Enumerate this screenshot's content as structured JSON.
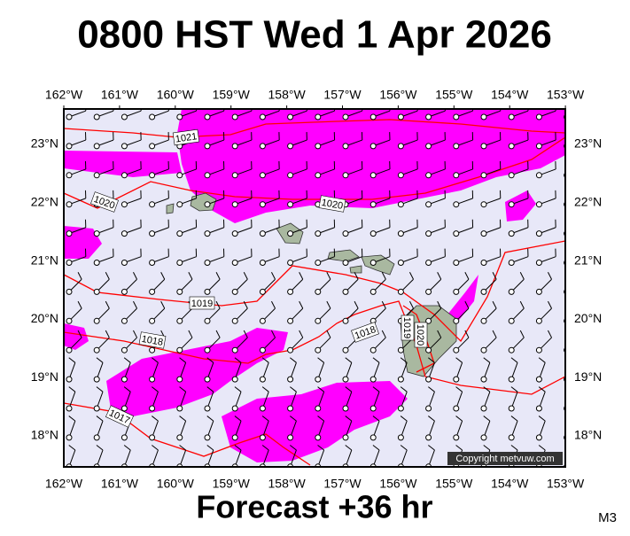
{
  "header": {
    "title": "0800 HST Wed 1 Apr 2026"
  },
  "map": {
    "lon_labels": [
      "162°W",
      "161°W",
      "160°W",
      "159°W",
      "158°W",
      "157°W",
      "156°W",
      "155°W",
      "154°W",
      "153°W"
    ],
    "lat_labels": [
      "23°N",
      "22°N",
      "21°N",
      "20°N",
      "19°N",
      "18°N"
    ],
    "isobar_labels": [
      "1021",
      "1020",
      "1020",
      "1019",
      "1018",
      "1018",
      "1017",
      "1019",
      "1020"
    ],
    "copyright": "Copyright metvuw.com"
  },
  "footer": {
    "forecast": "Forecast +36 hr",
    "model": "M3"
  }
}
